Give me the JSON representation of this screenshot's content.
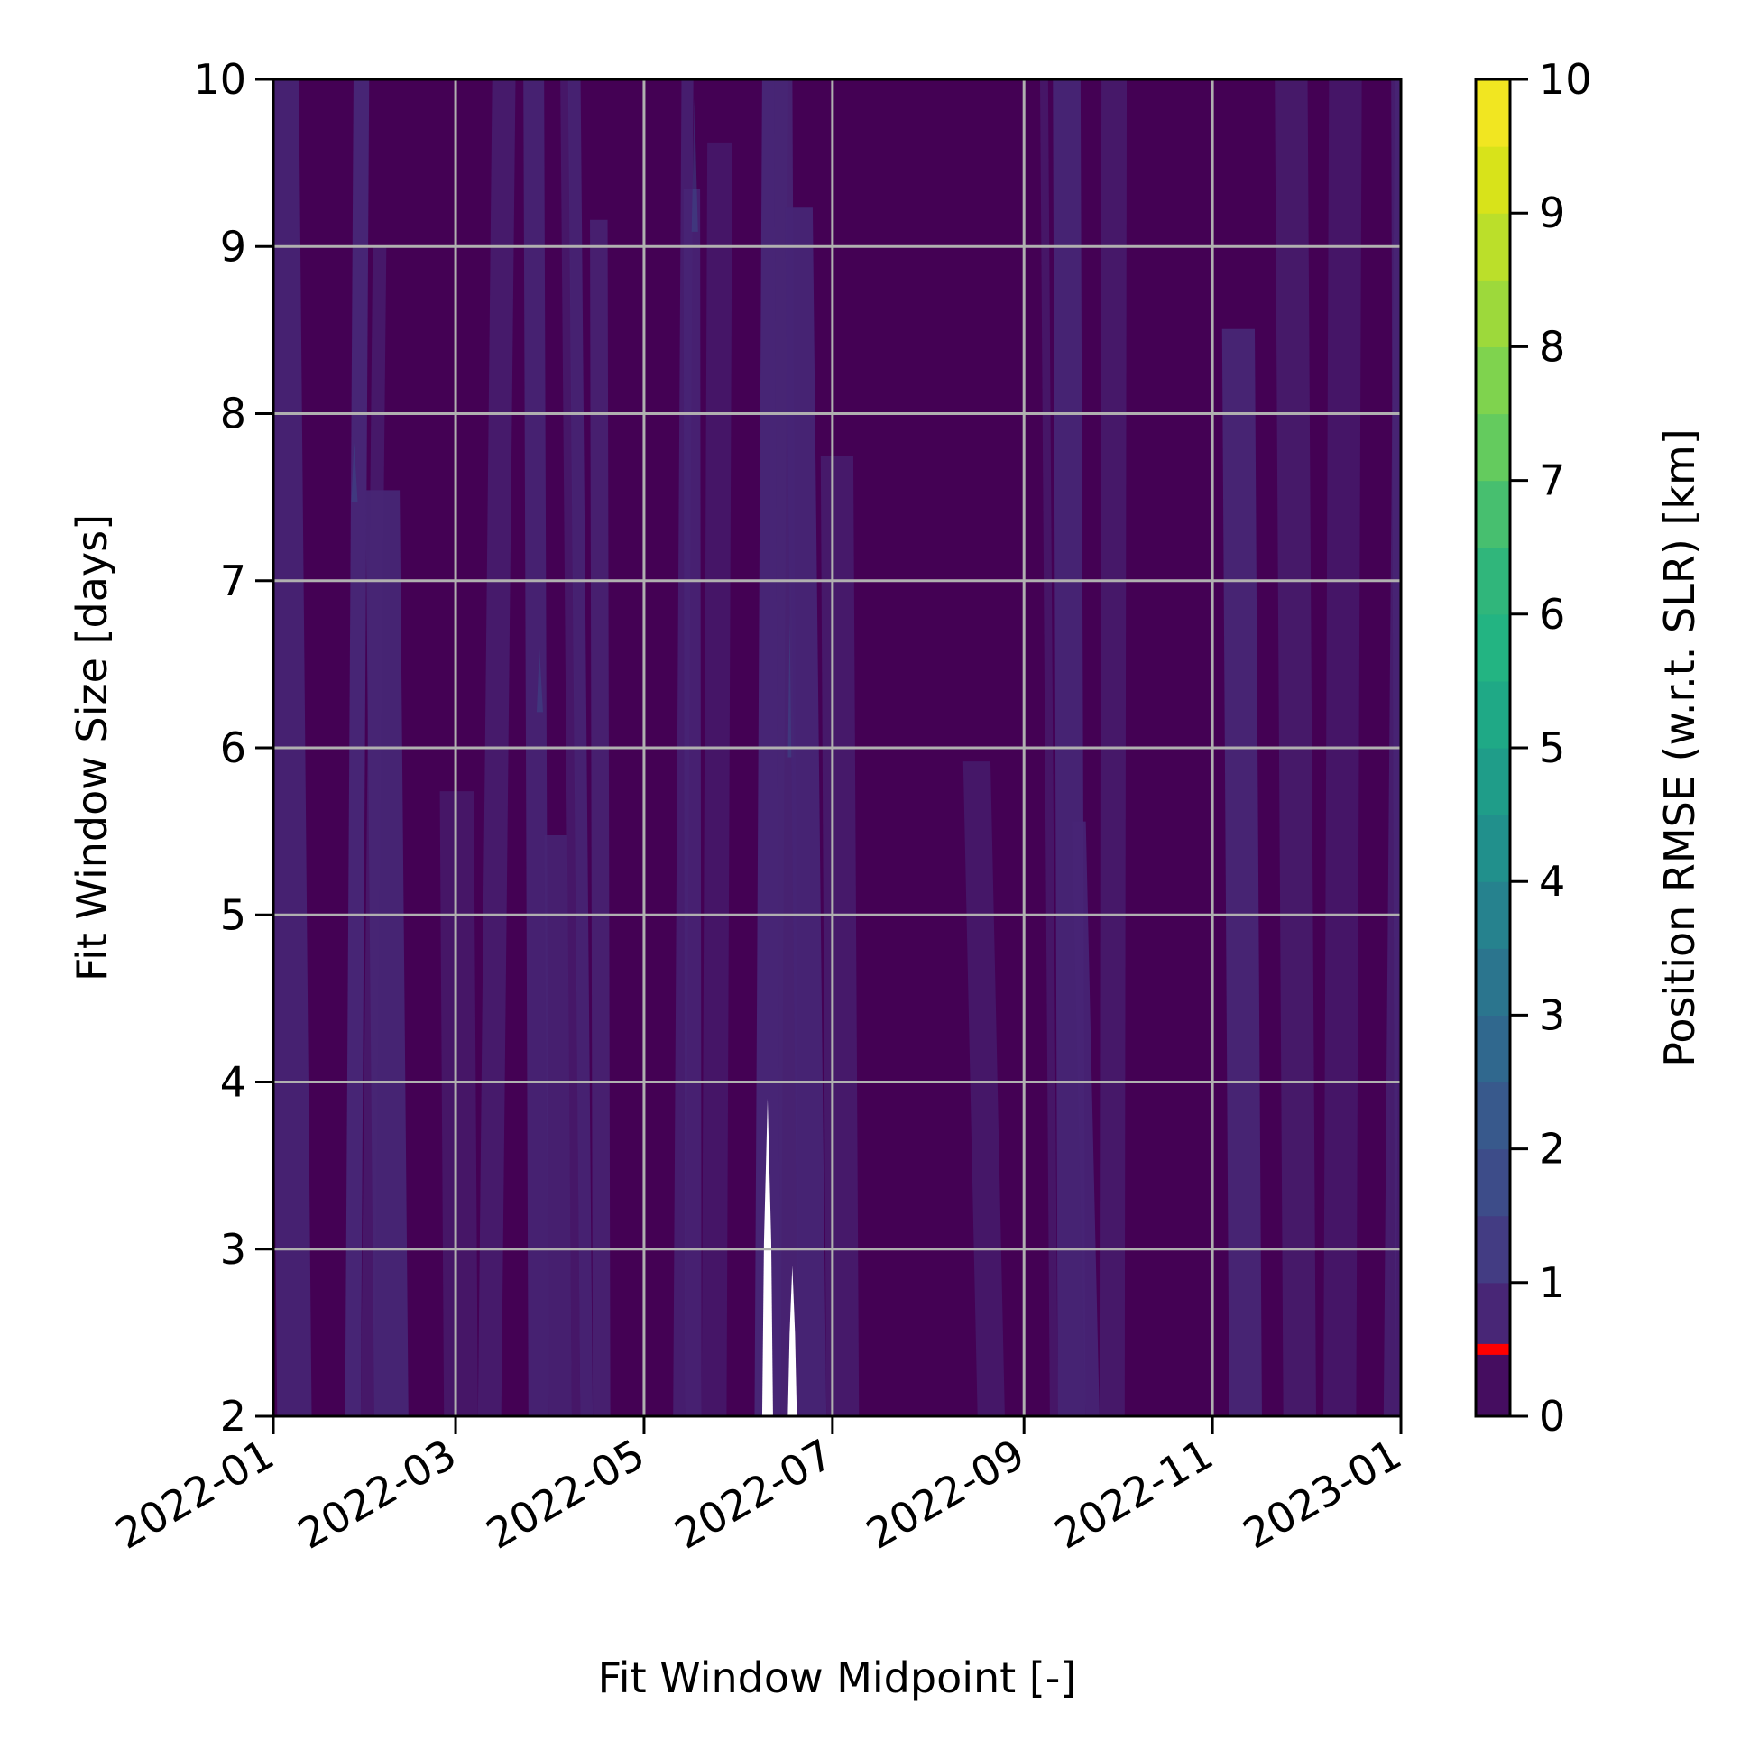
{
  "chart_data": {
    "type": "heatmap",
    "subtype": "filled-contour",
    "title": "",
    "xlabel": "Fit Window Midpoint [-]",
    "ylabel": "Fit Window Size [days]",
    "colorbar_label": "Position RMSE (w.r.t. SLR) [km]",
    "x_ticks": [
      "2022-01",
      "2022-03",
      "2022-05",
      "2022-07",
      "2022-09",
      "2022-11",
      "2023-01"
    ],
    "x_range": [
      "2022-01",
      "2023-01"
    ],
    "ylim": [
      2,
      10
    ],
    "y_ticks": [
      "2",
      "3",
      "4",
      "5",
      "6",
      "7",
      "8",
      "9",
      "10"
    ],
    "colorbar_range": [
      0,
      10
    ],
    "colorbar_ticks": [
      "0",
      "1",
      "2",
      "3",
      "4",
      "5",
      "6",
      "7",
      "8",
      "9",
      "10"
    ],
    "colormap": "viridis",
    "levels": 20,
    "grid": true,
    "colors": {
      "level_0": "#440154",
      "level_1": "#472575",
      "level_2": "#3a4c8a",
      "grid": "#b0b0b0",
      "nan_region": "#ffffff",
      "colorbar_marker": "#ff0000"
    },
    "colorbar_marker_value": 0.5,
    "value_range_shown": [
      0,
      1.5
    ],
    "missing_data_spikes": [
      {
        "x": "2022-06-10",
        "y_top": 3.9
      },
      {
        "x": "2022-06-18",
        "y_top": 2.9
      }
    ]
  }
}
